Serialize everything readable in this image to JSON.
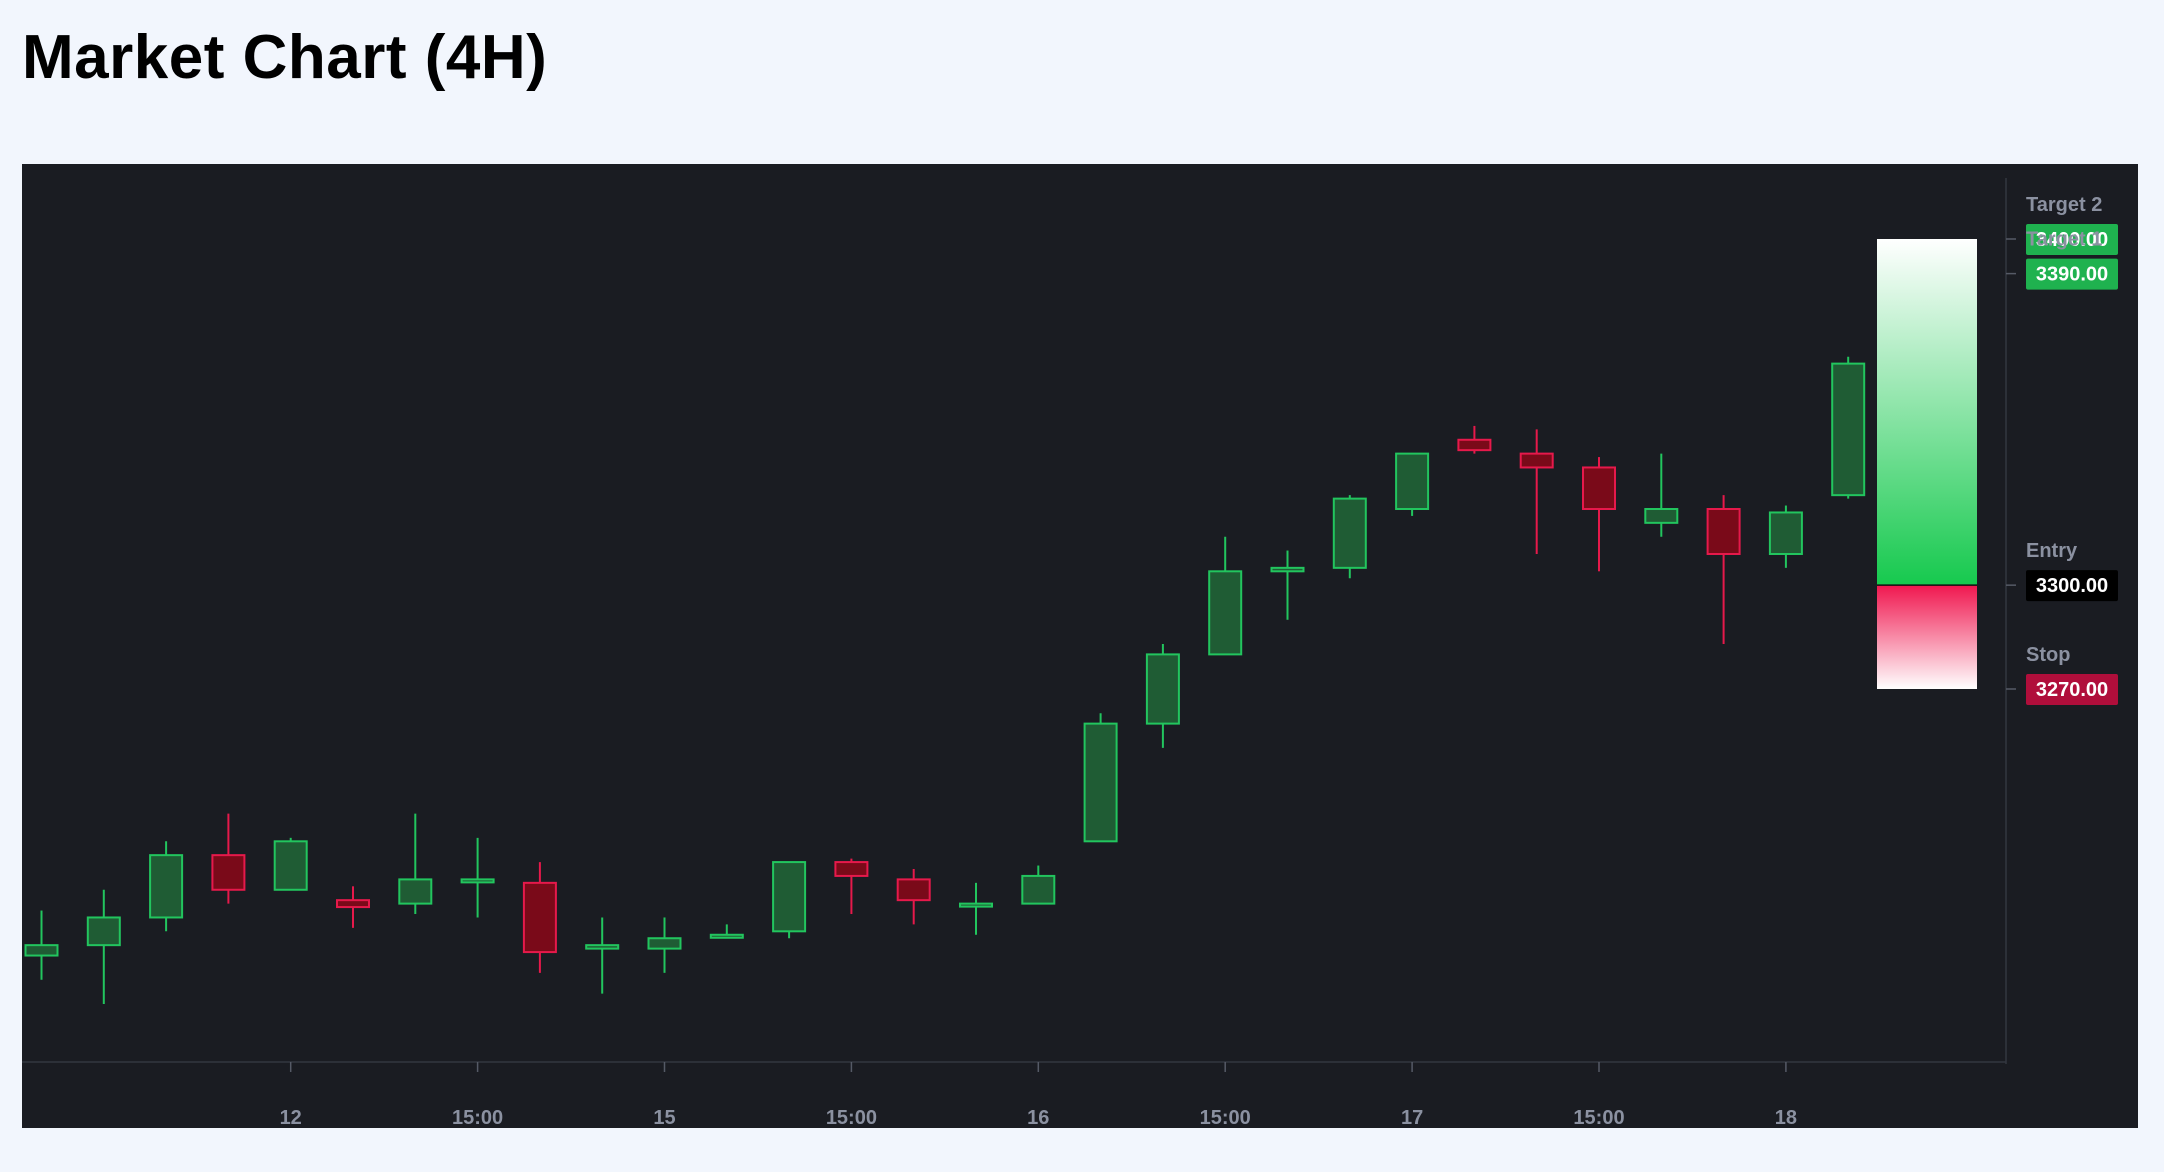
{
  "page": {
    "title": "Market Chart (4H)"
  },
  "colors": {
    "background": "#f2f6fd",
    "panel": "#1a1c22",
    "bullish": "#22c55e",
    "bullish_fill": "#1f5c34",
    "bearish": "#e6194b",
    "bearish_fill": "#7a0a19",
    "target_tag": "#1fb24f",
    "entry_tag": "#000000",
    "stop_tag": "#b00e3b",
    "axis_text": "#8b91a1"
  },
  "chart_data": {
    "type": "candlestick",
    "timeframe": "4H",
    "title": "Market Chart (4H)",
    "ylim": [
      3160,
      3420
    ],
    "x_tick_labels": [
      {
        "label": "12",
        "at_candle": 4
      },
      {
        "label": "15:00",
        "at_candle": 7
      },
      {
        "label": "15",
        "at_candle": 10
      },
      {
        "label": "15:00",
        "at_candle": 13
      },
      {
        "label": "16",
        "at_candle": 16
      },
      {
        "label": "15:00",
        "at_candle": 19
      },
      {
        "label": "17",
        "at_candle": 22
      },
      {
        "label": "15:00",
        "at_candle": 25
      },
      {
        "label": "18",
        "at_candle": 28
      }
    ],
    "candles": [
      {
        "o": 3193,
        "h": 3206,
        "l": 3186,
        "c": 3196
      },
      {
        "o": 3196,
        "h": 3212,
        "l": 3179,
        "c": 3204
      },
      {
        "o": 3204,
        "h": 3226,
        "l": 3200,
        "c": 3222
      },
      {
        "o": 3222,
        "h": 3234,
        "l": 3208,
        "c": 3212
      },
      {
        "o": 3212,
        "h": 3227,
        "l": 3212,
        "c": 3226
      },
      {
        "o": 3209,
        "h": 3213,
        "l": 3201,
        "c": 3207
      },
      {
        "o": 3208,
        "h": 3234,
        "l": 3205,
        "c": 3215
      },
      {
        "o": 3215,
        "h": 3227,
        "l": 3204,
        "c": 3215
      },
      {
        "o": 3214,
        "h": 3220,
        "l": 3188,
        "c": 3194
      },
      {
        "o": 3195,
        "h": 3204,
        "l": 3182,
        "c": 3196
      },
      {
        "o": 3195,
        "h": 3204,
        "l": 3188,
        "c": 3198
      },
      {
        "o": 3199,
        "h": 3202,
        "l": 3198,
        "c": 3199
      },
      {
        "o": 3200,
        "h": 3220,
        "l": 3198,
        "c": 3220
      },
      {
        "o": 3220,
        "h": 3221,
        "l": 3205,
        "c": 3216
      },
      {
        "o": 3215,
        "h": 3218,
        "l": 3202,
        "c": 3209
      },
      {
        "o": 3208,
        "h": 3214,
        "l": 3199,
        "c": 3208
      },
      {
        "o": 3208,
        "h": 3219,
        "l": 3208,
        "c": 3216
      },
      {
        "o": 3226,
        "h": 3263,
        "l": 3226,
        "c": 3260
      },
      {
        "o": 3260,
        "h": 3283,
        "l": 3253,
        "c": 3280
      },
      {
        "o": 3280,
        "h": 3314,
        "l": 3280,
        "c": 3304
      },
      {
        "o": 3304,
        "h": 3310,
        "l": 3290,
        "c": 3305
      },
      {
        "o": 3305,
        "h": 3326,
        "l": 3302,
        "c": 3325
      },
      {
        "o": 3322,
        "h": 3338,
        "l": 3320,
        "c": 3338
      },
      {
        "o": 3342,
        "h": 3346,
        "l": 3338,
        "c": 3339
      },
      {
        "o": 3338,
        "h": 3345,
        "l": 3309,
        "c": 3334
      },
      {
        "o": 3334,
        "h": 3337,
        "l": 3304,
        "c": 3322
      },
      {
        "o": 3318,
        "h": 3338,
        "l": 3314,
        "c": 3322
      },
      {
        "o": 3322,
        "h": 3326,
        "l": 3283,
        "c": 3309
      },
      {
        "o": 3309,
        "h": 3323,
        "l": 3305,
        "c": 3321
      },
      {
        "o": 3326,
        "h": 3366,
        "l": 3325,
        "c": 3364
      }
    ],
    "levels": [
      {
        "name": "Target 2",
        "value": "3400.00",
        "kind": "target"
      },
      {
        "name": "Target 1",
        "value": "3390.00",
        "kind": "target"
      },
      {
        "name": "Entry",
        "value": "3300.00",
        "kind": "entry"
      },
      {
        "name": "Stop",
        "value": "3270.00",
        "kind": "stop"
      }
    ],
    "position_zone": {
      "top": 3400,
      "entry": 3300,
      "stop": 3270
    },
    "grid": false
  }
}
